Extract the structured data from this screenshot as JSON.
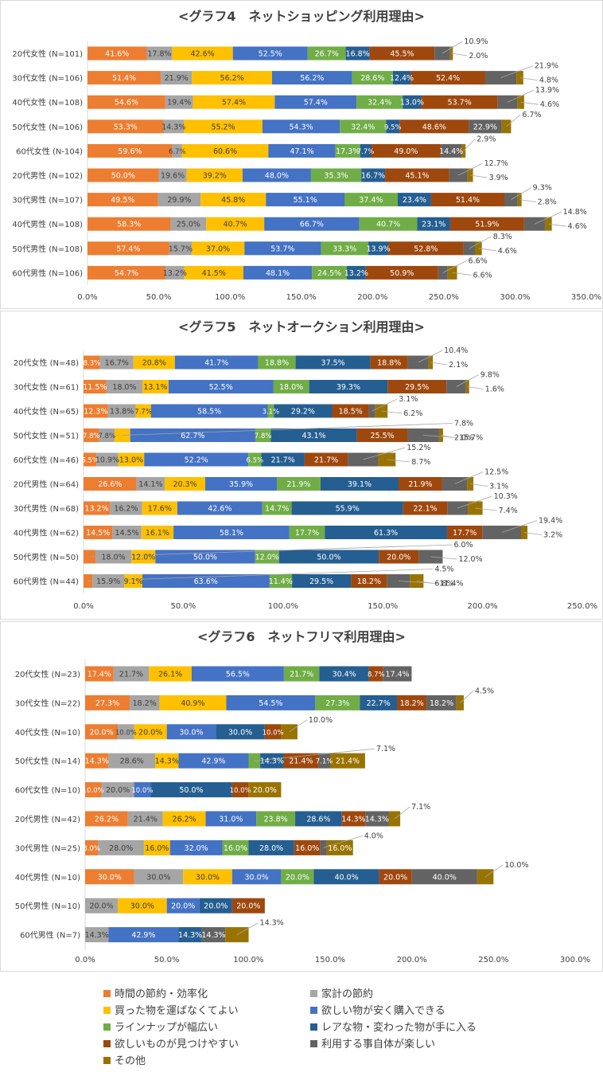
{
  "chart_data": [
    {
      "type": "bar",
      "orientation": "horizontal",
      "stacked": true,
      "title": "<グラフ4　ネットショッピング利用理由>",
      "categories": [
        "20代女性 (N=101)",
        "30代女性 (N=106)",
        "40代女性 (N=108)",
        "50代女性 (N=106)",
        "60代女性 (N-104)",
        "20代男性 (N=102)",
        "30代男性 (N=107)",
        "40代男性 (N=108)",
        "50代男性 (N=108)",
        "60代男性 (N=106)"
      ],
      "series": [
        {
          "name": "時間の節約・効率化",
          "values": [
            41.6,
            51.4,
            54.6,
            53.3,
            59.6,
            50.0,
            49.5,
            58.3,
            57.4,
            54.7
          ]
        },
        {
          "name": "家計の節約",
          "values": [
            17.8,
            21.9,
            19.4,
            14.3,
            6.7,
            19.6,
            29.9,
            25.0,
            15.7,
            13.2
          ]
        },
        {
          "name": "買った物を運ばなくてよい",
          "values": [
            42.6,
            56.2,
            57.4,
            55.2,
            60.6,
            39.2,
            45.8,
            40.7,
            37.0,
            41.5
          ]
        },
        {
          "name": "欲しい物が安く購入できる",
          "values": [
            52.5,
            56.2,
            57.4,
            54.3,
            47.1,
            48.0,
            55.1,
            66.7,
            53.7,
            48.1
          ]
        },
        {
          "name": "ラインナップが幅広い",
          "values": [
            26.7,
            28.6,
            32.4,
            32.4,
            17.3,
            35.3,
            37.4,
            40.7,
            33.3,
            24.5
          ]
        },
        {
          "name": "レアな物・変わった物が手に入る",
          "values": [
            16.8,
            12.4,
            13.0,
            9.5,
            7.7,
            16.7,
            23.4,
            23.1,
            13.9,
            13.2
          ]
        },
        {
          "name": "欲しいものが見つけやすい",
          "values": [
            45.5,
            52.4,
            53.7,
            48.6,
            49.0,
            45.1,
            51.4,
            51.9,
            52.8,
            50.9
          ]
        },
        {
          "name": "利用する事自体が楽しい",
          "values": [
            10.9,
            21.9,
            13.9,
            22.9,
            14.4,
            12.7,
            9.3,
            14.8,
            8.3,
            6.6
          ]
        },
        {
          "name": "その他",
          "values": [
            2.0,
            4.8,
            4.6,
            6.7,
            2.9,
            3.9,
            2.8,
            4.6,
            4.6,
            6.6
          ]
        }
      ],
      "xlim": [
        0,
        350
      ],
      "xticks": [
        "0.0%",
        "50.0%",
        "100.0%",
        "150.0%",
        "200.0%",
        "250.0%",
        "300.0%",
        "350.0%"
      ],
      "outside_labels": [
        {
          "row": 0,
          "series": 7,
          "text": "10.9%"
        },
        {
          "row": 0,
          "series": 8,
          "text": "2.0%"
        },
        {
          "row": 1,
          "series": 7,
          "text": "21.9%"
        },
        {
          "row": 1,
          "series": 8,
          "text": "4.8%"
        },
        {
          "row": 2,
          "series": 7,
          "text": "13.9%"
        },
        {
          "row": 2,
          "series": 8,
          "text": "4.6%"
        },
        {
          "row": 3,
          "series": 8,
          "text": "6.7%"
        },
        {
          "row": 4,
          "series": 8,
          "text": "2.9%"
        },
        {
          "row": 5,
          "series": 7,
          "text": "12.7%"
        },
        {
          "row": 5,
          "series": 8,
          "text": "3.9%"
        },
        {
          "row": 6,
          "series": 7,
          "text": "9.3%"
        },
        {
          "row": 6,
          "series": 8,
          "text": "2.8%"
        },
        {
          "row": 7,
          "series": 8,
          "text": "4.6%"
        },
        {
          "row": 7,
          "series": 7,
          "text": "14.8%"
        },
        {
          "row": 8,
          "series": 8,
          "text": "4.6%"
        },
        {
          "row": 8,
          "series": 7,
          "text": "8.3%"
        },
        {
          "row": 9,
          "series": 8,
          "text": "6.6%"
        },
        {
          "row": 9,
          "series": 7,
          "text": "6.6%"
        }
      ]
    },
    {
      "type": "bar",
      "orientation": "horizontal",
      "stacked": true,
      "title": "<グラフ5　ネットオークション利用理由>",
      "categories": [
        "20代女性 (N=48)",
        "30代女性 (N=61)",
        "40代女性 (N=65)",
        "50代女性 (N=51)",
        "60代女性 (N=46)",
        "20代男性 (N=64)",
        "30代男性 (N=68)",
        "40代男性 (N=62)",
        "50代男性 (N=50)",
        "60代男性 (N=44)"
      ],
      "series": [
        {
          "name": "時間の節約・効率化",
          "values": [
            8.3,
            11.5,
            12.3,
            7.8,
            6.5,
            26.6,
            13.2,
            14.5,
            6.0,
            4.5
          ]
        },
        {
          "name": "家計の節約",
          "values": [
            16.7,
            18.0,
            13.8,
            7.8,
            10.9,
            14.1,
            16.2,
            14.5,
            18.0,
            15.9
          ]
        },
        {
          "name": "買った物を運ばなくてよい",
          "values": [
            20.8,
            13.1,
            7.7,
            7.8,
            13.0,
            20.3,
            17.6,
            16.1,
            12.0,
            9.1
          ]
        },
        {
          "name": "欲しい物が安く購入できる",
          "values": [
            41.7,
            52.5,
            58.5,
            62.7,
            52.2,
            35.9,
            42.6,
            58.1,
            50.0,
            63.6
          ]
        },
        {
          "name": "ラインナップが幅広い",
          "values": [
            18.8,
            18.0,
            3.1,
            7.8,
            6.5,
            21.9,
            14.7,
            17.7,
            12.0,
            11.4
          ]
        },
        {
          "name": "レアな物・変わった物が手に入る",
          "values": [
            37.5,
            39.3,
            29.2,
            43.1,
            21.7,
            39.1,
            55.9,
            61.3,
            50.0,
            29.5
          ]
        },
        {
          "name": "欲しいものが見つけやすい",
          "values": [
            18.8,
            29.5,
            18.5,
            25.5,
            21.7,
            21.9,
            22.1,
            17.7,
            20.0,
            18.2
          ]
        },
        {
          "name": "利用する事自体が楽しい",
          "values": [
            10.4,
            9.8,
            3.1,
            15.7,
            15.2,
            12.5,
            10.3,
            19.4,
            12.0,
            11.4
          ]
        },
        {
          "name": "その他",
          "values": [
            2.1,
            1.6,
            6.2,
            2.0,
            8.7,
            3.1,
            7.4,
            3.2,
            0,
            6.8
          ]
        }
      ],
      "xlim": [
        0,
        250
      ],
      "xticks": [
        "0.0%",
        "50.0%",
        "100.0%",
        "150.0%",
        "200.0%",
        "250.0%"
      ],
      "outside_labels": [
        {
          "row": 0,
          "series": 7,
          "text": "10.4%"
        },
        {
          "row": 0,
          "series": 8,
          "text": "2.1%"
        },
        {
          "row": 1,
          "series": 7,
          "text": "9.8%"
        },
        {
          "row": 1,
          "series": 8,
          "text": "1.6%"
        },
        {
          "row": 2,
          "series": 7,
          "text": "3.1%"
        },
        {
          "row": 2,
          "series": 8,
          "text": "6.2%"
        },
        {
          "row": 3,
          "series": 7,
          "text": "15.7%"
        },
        {
          "row": 3,
          "series": 8,
          "text": "2.0%"
        },
        {
          "row": 3,
          "series": 2,
          "text": "7.8%"
        },
        {
          "row": 4,
          "series": 7,
          "text": "15.2%"
        },
        {
          "row": 4,
          "series": 8,
          "text": "8.7%"
        },
        {
          "row": 5,
          "series": 7,
          "text": "12.5%"
        },
        {
          "row": 5,
          "series": 8,
          "text": "3.1%"
        },
        {
          "row": 6,
          "series": 7,
          "text": "10.3%"
        },
        {
          "row": 6,
          "series": 8,
          "text": "7.4%"
        },
        {
          "row": 7,
          "series": 7,
          "text": "19.4%"
        },
        {
          "row": 7,
          "series": 8,
          "text": "3.2%"
        },
        {
          "row": 8,
          "series": 7,
          "text": "12.0%"
        },
        {
          "row": 8,
          "series": 0,
          "text": "6.0%"
        },
        {
          "row": 9,
          "series": 7,
          "text": "11.4%"
        },
        {
          "row": 9,
          "series": 8,
          "text": "6.8%"
        },
        {
          "row": 9,
          "series": 0,
          "text": "4.5%"
        }
      ]
    },
    {
      "type": "bar",
      "orientation": "horizontal",
      "stacked": true,
      "title": "<グラフ6　ネットフリマ利用理由>",
      "categories": [
        "20代女性 (N=23)",
        "30代女性 (N=22)",
        "40代女性 (N=10)",
        "50代女性 (N=14)",
        "60代女性 (N=10)",
        "20代男性 (N=42)",
        "30代男性 (N=25)",
        "40代男性 (N=10)",
        "50代男性 (N=10)",
        "60代男性 (N=7)"
      ],
      "series": [
        {
          "name": "時間の節約・効率化",
          "values": [
            17.4,
            27.3,
            20.0,
            14.3,
            10.0,
            26.2,
            8.0,
            30.0,
            0,
            0
          ]
        },
        {
          "name": "家計の節約",
          "values": [
            21.7,
            18.2,
            10.0,
            28.6,
            20.0,
            21.4,
            28.0,
            30.0,
            20.0,
            14.3
          ]
        },
        {
          "name": "買った物を運ばなくてよい",
          "values": [
            26.1,
            40.9,
            20.0,
            14.3,
            0,
            26.2,
            16.0,
            30.0,
            30.0,
            0
          ]
        },
        {
          "name": "欲しい物が安く購入できる",
          "values": [
            56.5,
            54.5,
            30.0,
            42.9,
            10.0,
            31.0,
            32.0,
            30.0,
            20.0,
            42.9
          ]
        },
        {
          "name": "ラインナップが幅広い",
          "values": [
            21.7,
            27.3,
            0,
            7.1,
            0,
            23.8,
            16.0,
            20.0,
            0,
            0
          ]
        },
        {
          "name": "レアな物・変わった物が手に入る",
          "values": [
            30.4,
            22.7,
            30.0,
            14.3,
            50.0,
            28.6,
            28.0,
            40.0,
            20.0,
            14.3
          ]
        },
        {
          "name": "欲しいものが見つけやすい",
          "values": [
            8.7,
            18.2,
            10.0,
            21.4,
            10.0,
            14.3,
            16.0,
            20.0,
            20.0,
            0
          ]
        },
        {
          "name": "利用する事自体が楽しい",
          "values": [
            17.4,
            18.2,
            0,
            7.1,
            0,
            14.3,
            4.0,
            40.0,
            0,
            14.3
          ]
        },
        {
          "name": "その他",
          "values": [
            0,
            4.5,
            10.0,
            21.4,
            20.0,
            7.1,
            16.0,
            10.0,
            0,
            14.3
          ]
        }
      ],
      "xlim": [
        0,
        300
      ],
      "xticks": [
        "0.0%",
        "50.0%",
        "100.0%",
        "150.0%",
        "200.0%",
        "250.0%",
        "300.0%"
      ],
      "outside_labels": [
        {
          "row": 1,
          "series": 8,
          "text": "4.5%"
        },
        {
          "row": 2,
          "series": 8,
          "text": "10.0%"
        },
        {
          "row": 3,
          "series": 4,
          "text": "7.1%"
        },
        {
          "row": 5,
          "series": 8,
          "text": "7.1%"
        },
        {
          "row": 6,
          "series": 7,
          "text": "4.0%"
        },
        {
          "row": 7,
          "series": 8,
          "text": "10.0%"
        },
        {
          "row": 9,
          "series": 8,
          "text": "14.3%"
        }
      ]
    }
  ],
  "legend": {
    "items": [
      {
        "label": "時間の節約・効率化",
        "color": "#ED7D31"
      },
      {
        "label": "家計の節約",
        "color": "#A5A5A5"
      },
      {
        "label": "買った物を運ばなくてよい",
        "color": "#FFC000"
      },
      {
        "label": "欲しい物が安く購入できる",
        "color": "#4472C4"
      },
      {
        "label": "ラインナップが幅広い",
        "color": "#70AD47"
      },
      {
        "label": "レアな物・変わった物が手に入る",
        "color": "#255E91"
      },
      {
        "label": "欲しいものが見つけやすい",
        "color": "#9E480E"
      },
      {
        "label": "利用する事自体が楽しい",
        "color": "#636363"
      },
      {
        "label": "その他",
        "color": "#997300"
      }
    ]
  },
  "colors": {
    "series": [
      "#ED7D31",
      "#A5A5A5",
      "#FFC000",
      "#4472C4",
      "#70AD47",
      "#255E91",
      "#9E480E",
      "#636363",
      "#997300"
    ],
    "label_text_inside": [
      "#ffffff",
      "#404040",
      "#404040",
      "#ffffff",
      "#ffffff",
      "#ffffff",
      "#ffffff",
      "#ffffff",
      "#ffffff"
    ],
    "panel_border": "#d9d9d9",
    "text": "#404040",
    "title": "#404040"
  }
}
